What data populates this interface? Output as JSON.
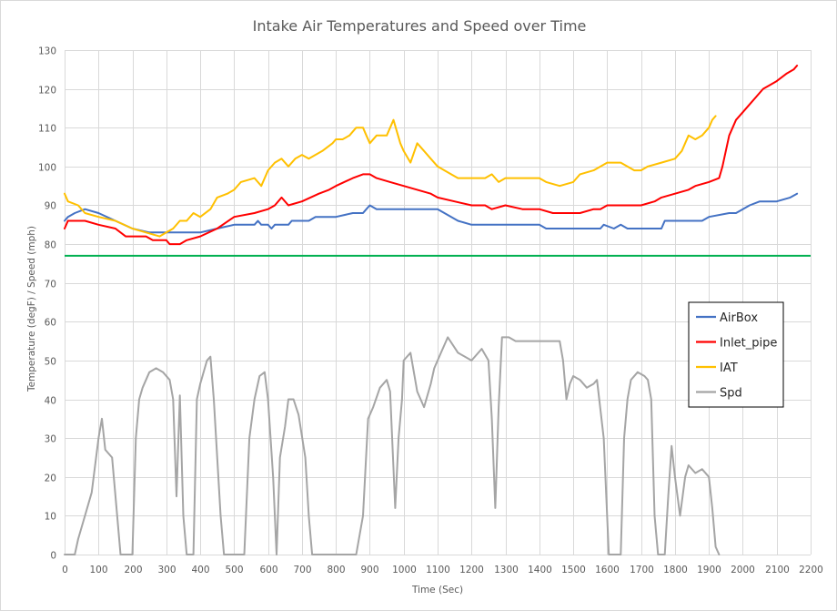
{
  "chart_data": {
    "type": "line",
    "title": "Intake Air Temperatures and Speed over Time",
    "xlabel": "Time (Sec)",
    "ylabel": "Temperature (degF) / Speed (mph)",
    "xlim": [
      0,
      2200
    ],
    "ylim": [
      0,
      130
    ],
    "x_ticks": [
      "0",
      "100",
      "200",
      "300",
      "400",
      "500",
      "600",
      "700",
      "800",
      "900",
      "1000",
      "1100",
      "1200",
      "1300",
      "1400",
      "1500",
      "1600",
      "1700",
      "1800",
      "1900",
      "2000",
      "2100",
      "2200"
    ],
    "y_ticks": [
      "0",
      "10",
      "20",
      "30",
      "40",
      "50",
      "60",
      "70",
      "80",
      "90",
      "100",
      "110",
      "120",
      "130"
    ],
    "grid": true,
    "legend_position": "right",
    "reference_line": {
      "y": 77,
      "color": "#00b050"
    },
    "series": [
      {
        "name": "AirBox",
        "color": "#4472c4",
        "points": [
          [
            0,
            86
          ],
          [
            10,
            87
          ],
          [
            30,
            88
          ],
          [
            60,
            89
          ],
          [
            100,
            88
          ],
          [
            150,
            86
          ],
          [
            200,
            84
          ],
          [
            250,
            83
          ],
          [
            300,
            83
          ],
          [
            350,
            83
          ],
          [
            400,
            83
          ],
          [
            450,
            84
          ],
          [
            500,
            85
          ],
          [
            560,
            85
          ],
          [
            570,
            86
          ],
          [
            580,
            85
          ],
          [
            600,
            85
          ],
          [
            610,
            84
          ],
          [
            620,
            85
          ],
          [
            660,
            85
          ],
          [
            670,
            86
          ],
          [
            720,
            86
          ],
          [
            740,
            87
          ],
          [
            800,
            87
          ],
          [
            850,
            88
          ],
          [
            880,
            88
          ],
          [
            890,
            89
          ],
          [
            900,
            90
          ],
          [
            920,
            89
          ],
          [
            1000,
            89
          ],
          [
            1100,
            89
          ],
          [
            1120,
            88
          ],
          [
            1160,
            86
          ],
          [
            1200,
            85
          ],
          [
            1300,
            85
          ],
          [
            1400,
            85
          ],
          [
            1420,
            84
          ],
          [
            1500,
            84
          ],
          [
            1580,
            84
          ],
          [
            1590,
            85
          ],
          [
            1620,
            84
          ],
          [
            1640,
            85
          ],
          [
            1660,
            84
          ],
          [
            1700,
            84
          ],
          [
            1760,
            84
          ],
          [
            1770,
            86
          ],
          [
            1880,
            86
          ],
          [
            1900,
            87
          ],
          [
            1960,
            88
          ],
          [
            1980,
            88
          ],
          [
            2000,
            89
          ],
          [
            2020,
            90
          ],
          [
            2050,
            91
          ],
          [
            2100,
            91
          ],
          [
            2140,
            92
          ],
          [
            2160,
            93
          ]
        ]
      },
      {
        "name": "Inlet_pipe",
        "color": "#ff0000",
        "points": [
          [
            0,
            84
          ],
          [
            10,
            86
          ],
          [
            20,
            86
          ],
          [
            60,
            86
          ],
          [
            100,
            85
          ],
          [
            150,
            84
          ],
          [
            180,
            82
          ],
          [
            200,
            82
          ],
          [
            240,
            82
          ],
          [
            260,
            81
          ],
          [
            300,
            81
          ],
          [
            310,
            80
          ],
          [
            340,
            80
          ],
          [
            360,
            81
          ],
          [
            400,
            82
          ],
          [
            450,
            84
          ],
          [
            500,
            87
          ],
          [
            560,
            88
          ],
          [
            600,
            89
          ],
          [
            620,
            90
          ],
          [
            640,
            92
          ],
          [
            660,
            90
          ],
          [
            700,
            91
          ],
          [
            750,
            93
          ],
          [
            780,
            94
          ],
          [
            800,
            95
          ],
          [
            850,
            97
          ],
          [
            880,
            98
          ],
          [
            900,
            98
          ],
          [
            920,
            97
          ],
          [
            960,
            96
          ],
          [
            1000,
            95
          ],
          [
            1040,
            94
          ],
          [
            1080,
            93
          ],
          [
            1100,
            92
          ],
          [
            1150,
            91
          ],
          [
            1200,
            90
          ],
          [
            1240,
            90
          ],
          [
            1260,
            89
          ],
          [
            1300,
            90
          ],
          [
            1350,
            89
          ],
          [
            1400,
            89
          ],
          [
            1440,
            88
          ],
          [
            1480,
            88
          ],
          [
            1520,
            88
          ],
          [
            1560,
            89
          ],
          [
            1580,
            89
          ],
          [
            1600,
            90
          ],
          [
            1650,
            90
          ],
          [
            1700,
            90
          ],
          [
            1740,
            91
          ],
          [
            1760,
            92
          ],
          [
            1800,
            93
          ],
          [
            1840,
            94
          ],
          [
            1860,
            95
          ],
          [
            1900,
            96
          ],
          [
            1930,
            97
          ],
          [
            1940,
            100
          ],
          [
            1950,
            104
          ],
          [
            1960,
            108
          ],
          [
            1980,
            112
          ],
          [
            2000,
            114
          ],
          [
            2020,
            116
          ],
          [
            2040,
            118
          ],
          [
            2060,
            120
          ],
          [
            2080,
            121
          ],
          [
            2100,
            122
          ],
          [
            2130,
            124
          ],
          [
            2150,
            125
          ],
          [
            2160,
            126
          ]
        ]
      },
      {
        "name": "IAT",
        "color": "#ffc000",
        "points": [
          [
            0,
            93
          ],
          [
            10,
            91
          ],
          [
            40,
            90
          ],
          [
            60,
            88
          ],
          [
            100,
            87
          ],
          [
            150,
            86
          ],
          [
            200,
            84
          ],
          [
            240,
            83
          ],
          [
            280,
            82
          ],
          [
            300,
            83
          ],
          [
            320,
            84
          ],
          [
            340,
            86
          ],
          [
            360,
            86
          ],
          [
            380,
            88
          ],
          [
            400,
            87
          ],
          [
            430,
            89
          ],
          [
            450,
            92
          ],
          [
            480,
            93
          ],
          [
            500,
            94
          ],
          [
            520,
            96
          ],
          [
            560,
            97
          ],
          [
            580,
            95
          ],
          [
            600,
            99
          ],
          [
            620,
            101
          ],
          [
            640,
            102
          ],
          [
            660,
            100
          ],
          [
            680,
            102
          ],
          [
            700,
            103
          ],
          [
            720,
            102
          ],
          [
            760,
            104
          ],
          [
            790,
            106
          ],
          [
            800,
            107
          ],
          [
            820,
            107
          ],
          [
            840,
            108
          ],
          [
            860,
            110
          ],
          [
            880,
            110
          ],
          [
            890,
            108
          ],
          [
            900,
            106
          ],
          [
            920,
            108
          ],
          [
            950,
            108
          ],
          [
            970,
            112
          ],
          [
            990,
            106
          ],
          [
            1000,
            104
          ],
          [
            1020,
            101
          ],
          [
            1040,
            106
          ],
          [
            1060,
            104
          ],
          [
            1080,
            102
          ],
          [
            1100,
            100
          ],
          [
            1120,
            99
          ],
          [
            1140,
            98
          ],
          [
            1160,
            97
          ],
          [
            1200,
            97
          ],
          [
            1240,
            97
          ],
          [
            1260,
            98
          ],
          [
            1280,
            96
          ],
          [
            1300,
            97
          ],
          [
            1400,
            97
          ],
          [
            1420,
            96
          ],
          [
            1460,
            95
          ],
          [
            1500,
            96
          ],
          [
            1520,
            98
          ],
          [
            1560,
            99
          ],
          [
            1600,
            101
          ],
          [
            1640,
            101
          ],
          [
            1680,
            99
          ],
          [
            1700,
            99
          ],
          [
            1720,
            100
          ],
          [
            1760,
            101
          ],
          [
            1800,
            102
          ],
          [
            1820,
            104
          ],
          [
            1840,
            108
          ],
          [
            1860,
            107
          ],
          [
            1880,
            108
          ],
          [
            1900,
            110
          ],
          [
            1910,
            112
          ],
          [
            1920,
            113
          ]
        ]
      },
      {
        "name": "Spd",
        "color": "#a5a5a5",
        "points": [
          [
            0,
            0
          ],
          [
            30,
            0
          ],
          [
            40,
            4
          ],
          [
            60,
            10
          ],
          [
            80,
            16
          ],
          [
            100,
            30
          ],
          [
            110,
            35
          ],
          [
            120,
            27
          ],
          [
            140,
            25
          ],
          [
            155,
            10
          ],
          [
            165,
            0
          ],
          [
            200,
            0
          ],
          [
            210,
            30
          ],
          [
            220,
            40
          ],
          [
            230,
            43
          ],
          [
            250,
            47
          ],
          [
            270,
            48
          ],
          [
            290,
            47
          ],
          [
            310,
            45
          ],
          [
            320,
            40
          ],
          [
            330,
            15
          ],
          [
            340,
            41
          ],
          [
            350,
            10
          ],
          [
            360,
            0
          ],
          [
            380,
            0
          ],
          [
            390,
            40
          ],
          [
            400,
            44
          ],
          [
            420,
            50
          ],
          [
            430,
            51
          ],
          [
            440,
            40
          ],
          [
            460,
            10
          ],
          [
            470,
            0
          ],
          [
            530,
            0
          ],
          [
            545,
            30
          ],
          [
            560,
            40
          ],
          [
            575,
            46
          ],
          [
            590,
            47
          ],
          [
            600,
            40
          ],
          [
            615,
            20
          ],
          [
            625,
            0
          ],
          [
            635,
            25
          ],
          [
            650,
            33
          ],
          [
            660,
            40
          ],
          [
            675,
            40
          ],
          [
            690,
            36
          ],
          [
            710,
            25
          ],
          [
            720,
            10
          ],
          [
            730,
            0
          ],
          [
            860,
            0
          ],
          [
            880,
            10
          ],
          [
            895,
            35
          ],
          [
            910,
            38
          ],
          [
            930,
            43
          ],
          [
            950,
            45
          ],
          [
            960,
            42
          ],
          [
            975,
            12
          ],
          [
            985,
            30
          ],
          [
            995,
            40
          ],
          [
            1000,
            50
          ],
          [
            1020,
            52
          ],
          [
            1040,
            42
          ],
          [
            1060,
            38
          ],
          [
            1080,
            44
          ],
          [
            1090,
            48
          ],
          [
            1110,
            52
          ],
          [
            1130,
            56
          ],
          [
            1160,
            52
          ],
          [
            1200,
            50
          ],
          [
            1230,
            53
          ],
          [
            1250,
            50
          ],
          [
            1260,
            35
          ],
          [
            1270,
            12
          ],
          [
            1280,
            38
          ],
          [
            1290,
            56
          ],
          [
            1310,
            56
          ],
          [
            1330,
            55
          ],
          [
            1400,
            55
          ],
          [
            1460,
            55
          ],
          [
            1470,
            50
          ],
          [
            1480,
            40
          ],
          [
            1490,
            44
          ],
          [
            1500,
            46
          ],
          [
            1520,
            45
          ],
          [
            1540,
            43
          ],
          [
            1560,
            44
          ],
          [
            1570,
            45
          ],
          [
            1590,
            30
          ],
          [
            1605,
            0
          ],
          [
            1640,
            0
          ],
          [
            1650,
            30
          ],
          [
            1660,
            40
          ],
          [
            1670,
            45
          ],
          [
            1690,
            47
          ],
          [
            1710,
            46
          ],
          [
            1720,
            45
          ],
          [
            1730,
            40
          ],
          [
            1740,
            10
          ],
          [
            1750,
            0
          ],
          [
            1770,
            0
          ],
          [
            1780,
            15
          ],
          [
            1790,
            28
          ],
          [
            1800,
            20
          ],
          [
            1815,
            10
          ],
          [
            1830,
            20
          ],
          [
            1840,
            23
          ],
          [
            1860,
            21
          ],
          [
            1880,
            22
          ],
          [
            1900,
            20
          ],
          [
            1910,
            12
          ],
          [
            1920,
            2
          ],
          [
            1930,
            0
          ]
        ]
      }
    ]
  }
}
